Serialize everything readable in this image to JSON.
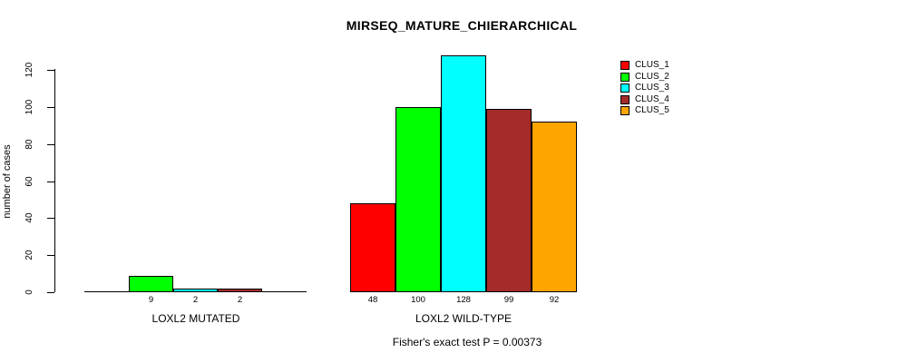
{
  "chart_data": {
    "type": "bar",
    "title": "MIRSEQ_MATURE_CHIERARCHICAL",
    "ylabel": "number of cases",
    "xlabel": "",
    "yticks": [
      0,
      20,
      40,
      60,
      80,
      100,
      120
    ],
    "ylim": [
      0,
      128
    ],
    "grid": false,
    "legend_position": "top-right",
    "categories": [
      "LOXL2 MUTATED",
      "LOXL2 WILD-TYPE"
    ],
    "series": [
      {
        "name": "CLUS_1",
        "color": "#ff0000",
        "values": [
          0,
          48
        ]
      },
      {
        "name": "CLUS_2",
        "color": "#00ff00",
        "values": [
          9,
          100
        ]
      },
      {
        "name": "CLUS_3",
        "color": "#00ffff",
        "values": [
          2,
          128
        ]
      },
      {
        "name": "CLUS_4",
        "color": "#a52a2a",
        "values": [
          2,
          99
        ]
      },
      {
        "name": "CLUS_5",
        "color": "#ffa500",
        "values": [
          0,
          92
        ]
      }
    ],
    "bar_value_labels": {
      "LOXL2 MUTATED": [
        "9",
        "2",
        "2"
      ],
      "LOXL2 WILD-TYPE": [
        "48",
        "100",
        "128",
        "99",
        "92"
      ]
    },
    "show_zero_value_labels": false,
    "subtitle": "Fisher's exact test P = 0.00373",
    "axis_color": "#000000",
    "background_color": "#ffffff"
  }
}
